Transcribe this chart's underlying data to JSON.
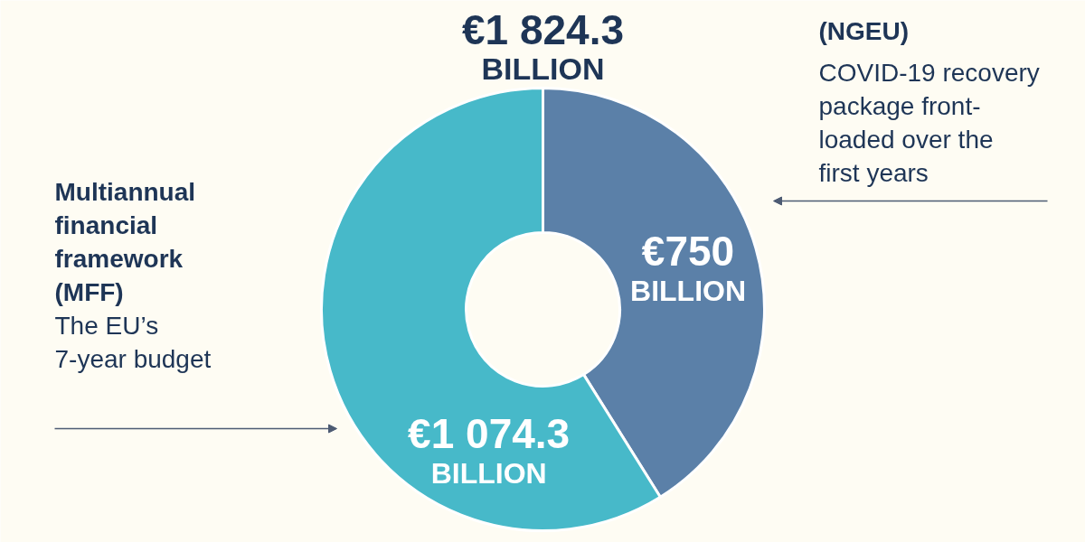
{
  "chart_data": {
    "type": "donut",
    "title": "€1 824.3 BILLION",
    "categories": [
      "(NGEU)",
      "Multiannual financial framework (MFF)"
    ],
    "values": [
      750,
      1074.3
    ],
    "colors": [
      "#5b80a8",
      "#47b9c9"
    ],
    "value_labels": [
      "€750 BILLION",
      "€1 074.3 BILLION"
    ],
    "annotations": [
      "COVID-19 recovery package front-loaded over the first years",
      "The EU’s 7-year budget"
    ]
  }
}
